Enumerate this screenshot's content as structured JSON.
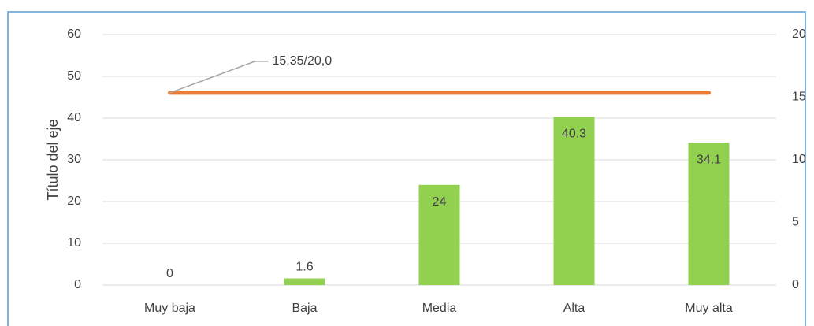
{
  "chart_data": {
    "type": "bar",
    "categories": [
      "Muy baja",
      "Baja",
      "Media",
      "Alta",
      "Muy alta"
    ],
    "series": [
      {
        "type": "bar",
        "color": "#92d050",
        "values": [
          0,
          1.6,
          24,
          40.3,
          34.1
        ]
      },
      {
        "type": "line",
        "axis": "y2",
        "color": "#ed7d31",
        "values": [
          15.35,
          15.35,
          15.35,
          15.35,
          15.35
        ]
      }
    ],
    "annotation": "15,35/20,0",
    "y_label": "Título del eje",
    "ylim": [
      0,
      60
    ],
    "yticks": [
      0,
      10,
      20,
      30,
      40,
      50,
      60
    ],
    "y2lim": [
      0,
      20
    ],
    "y2ticks": [
      0,
      5,
      10,
      15,
      20
    ],
    "grid": true
  }
}
